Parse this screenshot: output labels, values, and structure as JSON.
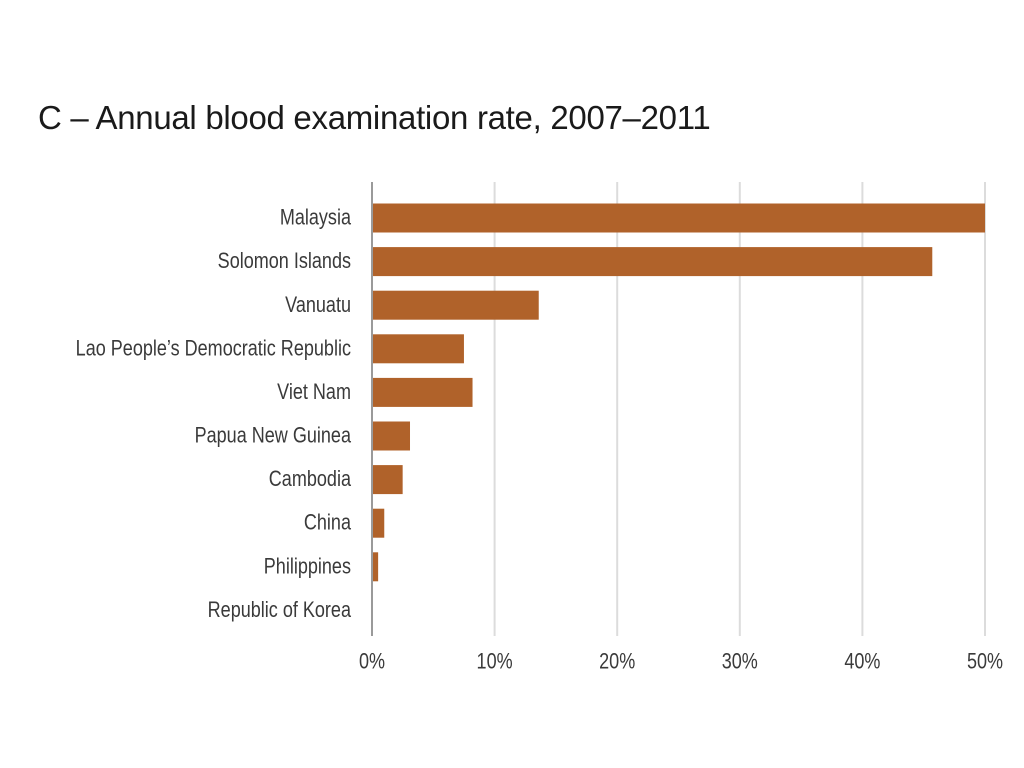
{
  "chart_data": {
    "type": "bar",
    "orientation": "horizontal",
    "title": "C – Annual blood examination rate, 2007–2011",
    "categories": [
      "Malaysia",
      "Solomon Islands",
      "Vanuatu",
      "Lao People’s Democratic Republic",
      "Viet Nam",
      "Papua New Guinea",
      "Cambodia",
      "China",
      "Philippines",
      "Republic of Korea"
    ],
    "values": [
      50.0,
      45.7,
      13.6,
      7.5,
      8.2,
      3.1,
      2.5,
      1.0,
      0.5,
      0.0
    ],
    "value_unit": "%",
    "xlim": [
      0,
      50
    ],
    "xticks": [
      0,
      10,
      20,
      30,
      40,
      50
    ],
    "xtick_labels": [
      "0%",
      "10%",
      "20%",
      "30%",
      "40%",
      "50%"
    ],
    "xlabel": "",
    "ylabel": "",
    "grid": "vertical",
    "legend": "none",
    "bar_color": "#b0622a",
    "grid_color": "#dcdcdc",
    "axis_color": "#9a9a9a"
  }
}
